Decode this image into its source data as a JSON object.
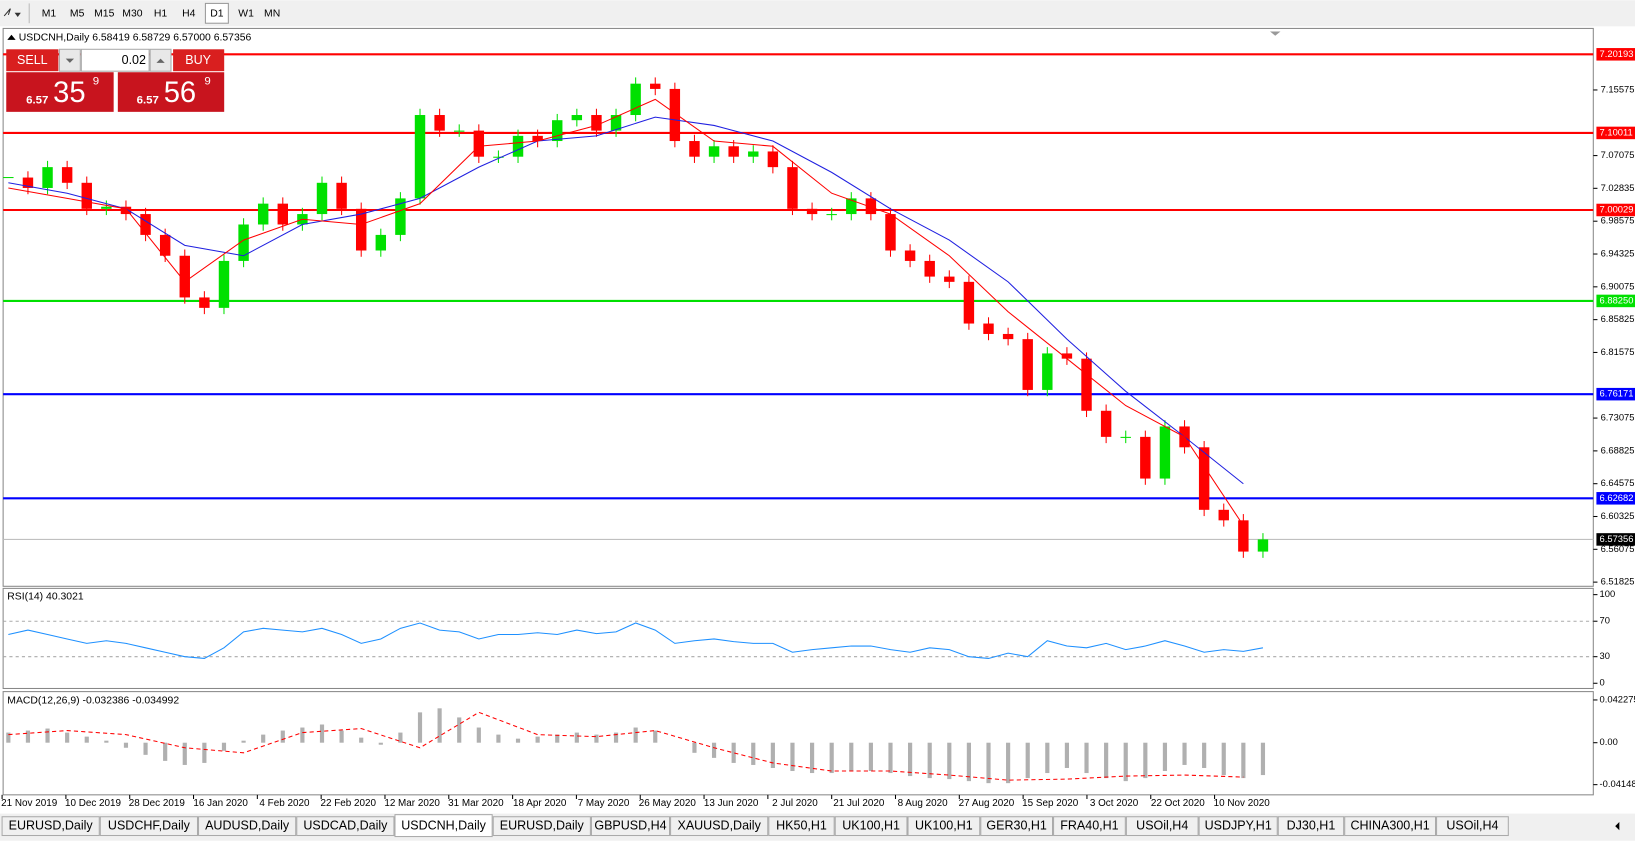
{
  "toolbar": {
    "timeframes": [
      "M1",
      "M5",
      "M15",
      "M30",
      "H1",
      "H4",
      "D1",
      "W1",
      "MN"
    ],
    "active": "D1"
  },
  "chart": {
    "header": "USDCNH,Daily  6.58419 6.58729 6.57000 6.57356",
    "trade": {
      "sell": "SELL",
      "buy": "BUY",
      "lot": "0.02",
      "sell_price": {
        "prefix": "6.57",
        "big": "35",
        "sup": "9"
      },
      "buy_price": {
        "prefix": "6.57",
        "big": "56",
        "sup": "9"
      }
    },
    "ylim": [
      6.5142,
      7.2341
    ],
    "yticks": [
      {
        "value": 7.15575,
        "label": "7.15575"
      },
      {
        "value": 7.07075,
        "label": "7.07075"
      },
      {
        "value": 7.02835,
        "label": "7.02835"
      },
      {
        "value": 6.98575,
        "label": "6.98575"
      },
      {
        "value": 6.94325,
        "label": "6.94325"
      },
      {
        "value": 6.90075,
        "label": "6.90075"
      },
      {
        "value": 6.85825,
        "label": "6.85825"
      },
      {
        "value": 6.81575,
        "label": "6.81575"
      },
      {
        "value": 6.73075,
        "label": "6.73075"
      },
      {
        "value": 6.68825,
        "label": "6.68825"
      },
      {
        "value": 6.64575,
        "label": "6.64575"
      },
      {
        "value": 6.60325,
        "label": "6.60325"
      },
      {
        "value": 6.56075,
        "label": "6.56075"
      },
      {
        "value": 6.51825,
        "label": "6.51825"
      }
    ],
    "levels": [
      {
        "value": 7.20193,
        "label": "7.20193",
        "color": "#ff0000"
      },
      {
        "value": 7.10011,
        "label": "7.10011",
        "color": "#ff0000"
      },
      {
        "value": 7.00029,
        "label": "7.00029",
        "color": "#ff0000"
      },
      {
        "value": 6.8825,
        "label": "6.88250",
        "color": "#00e000"
      },
      {
        "value": 6.76171,
        "label": "6.76171",
        "color": "#0000ff"
      },
      {
        "value": 6.62682,
        "label": "6.62682",
        "color": "#0000ff"
      }
    ],
    "current": {
      "value": 6.57356,
      "label": "6.57356"
    },
    "up_color": "#00e000",
    "down_color": "#ff0000",
    "closes": [
      7.0423,
      7.0288,
      7.0558,
      7.0355,
      7.0018,
      7.0045,
      6.995,
      6.968,
      6.941,
      6.887,
      6.8735,
      6.9343,
      6.9815,
      7.0085,
      6.9815,
      6.995,
      7.0355,
      7.0018,
      6.9478,
      6.968,
      7.0153,
      7.1233,
      7.1031,
      7.1031,
      7.0693,
      7.0693,
      7.0963,
      7.0896,
      7.1166,
      7.1233,
      7.1031,
      7.1233,
      7.1639,
      7.1571,
      7.0896,
      7.0693,
      7.0828,
      7.0693,
      7.0761,
      7.0558,
      7.0018,
      6.995,
      6.995,
      7.0153,
      6.995,
      6.9478,
      6.9343,
      6.914,
      6.9072,
      6.8532,
      6.8397,
      6.833,
      6.7672,
      6.8145,
      6.8077,
      6.7402,
      6.7064,
      6.7064,
      6.6524,
      6.7199,
      6.6929,
      6.6119,
      6.5983,
      6.5578,
      6.5736
    ],
    "ma_fast": {
      "color": "#ff0000",
      "values": [
        7.0288,
        7.0153,
        7.0018,
        6.9072,
        6.9613,
        6.9883,
        6.9815,
        7.0085,
        7.0828,
        7.0896,
        7.1098,
        7.1436,
        7.0896,
        7.0828,
        7.022,
        6.995,
        6.941,
        6.8685,
        6.8077,
        6.7469,
        6.7064,
        6.5916
      ]
    },
    "ma_slow": {
      "color": "#2020e0",
      "values": [
        7.0355,
        7.022,
        7.0018,
        6.9545,
        6.941,
        6.9815,
        6.995,
        7.0153,
        7.0558,
        7.0896,
        7.0963,
        7.1206,
        7.1098,
        7.0896,
        7.049,
        7.0018,
        6.9613,
        6.9072,
        6.833,
        6.7654,
        6.7064,
        6.6457
      ]
    },
    "dates": [
      "21 Nov 2019",
      "10 Dec 2019",
      "28 Dec 2019",
      "16 Jan 2020",
      "4 Feb 2020",
      "22 Feb 2020",
      "12 Mar 2020",
      "31 Mar 2020",
      "18 Apr 2020",
      "7 May 2020",
      "26 May 2020",
      "13 Jun 2020",
      "2 Jul 2020",
      "21 Jul 2020",
      "8 Aug 2020",
      "27 Aug 2020",
      "15 Sep 2020",
      "3 Oct 2020",
      "22 Oct 2020",
      "10 Nov 2020"
    ]
  },
  "rsi": {
    "label": "RSI(14) 40.3021",
    "color": "#1e90ff",
    "ylim": [
      0,
      100
    ],
    "yticks": [
      100,
      70,
      30,
      0
    ],
    "levels": [
      70,
      30
    ],
    "values": [
      55,
      60,
      55,
      50,
      45,
      48,
      45,
      40,
      35,
      30,
      28,
      40,
      58,
      62,
      60,
      58,
      62,
      55,
      45,
      50,
      62,
      68,
      60,
      58,
      50,
      55,
      55,
      57,
      55,
      60,
      56,
      58,
      68,
      60,
      45,
      48,
      50,
      47,
      45,
      45,
      35,
      38,
      40,
      42,
      42,
      38,
      35,
      40,
      38,
      30,
      28,
      34,
      30,
      48,
      42,
      40,
      45,
      38,
      42,
      48,
      42,
      35,
      38,
      36,
      40
    ]
  },
  "macd": {
    "label": "MACD(12,26,9) -0.032386 -0.034992",
    "ylim": [
      -0.0495,
      0.0495
    ],
    "yticks": [
      {
        "value": 0.042275,
        "label": "0.042275"
      },
      {
        "value": 0,
        "label": "0.00"
      },
      {
        "value": -0.04148,
        "label": "-0.04148"
      }
    ],
    "histogram_color": "#b0b0b0",
    "signal_color": "#ff0000",
    "histogram": [
      0.01,
      0.012,
      0.014,
      0.01,
      0.006,
      0.002,
      -0.005,
      -0.012,
      -0.018,
      -0.022,
      -0.02,
      -0.008,
      0.002,
      0.008,
      0.012,
      0.015,
      0.018,
      0.012,
      0.005,
      -0.002,
      0.01,
      0.03,
      0.034,
      0.025,
      0.015,
      0.008,
      0.004,
      0.006,
      0.008,
      0.01,
      0.008,
      0.01,
      0.015,
      0.012,
      0.0,
      -0.01,
      -0.015,
      -0.02,
      -0.022,
      -0.025,
      -0.028,
      -0.03,
      -0.03,
      -0.028,
      -0.028,
      -0.03,
      -0.033,
      -0.035,
      -0.036,
      -0.038,
      -0.04,
      -0.04,
      -0.035,
      -0.03,
      -0.025,
      -0.03,
      -0.035,
      -0.038,
      -0.035,
      -0.028,
      -0.022,
      -0.025,
      -0.032,
      -0.035,
      -0.032
    ],
    "signal": [
      0.008,
      0.012,
      0.008,
      -0.005,
      -0.01,
      0.01,
      0.014,
      -0.005,
      0.03,
      0.008,
      0.006,
      0.012,
      -0.005,
      -0.02,
      -0.028,
      -0.028,
      -0.032,
      -0.037,
      -0.036,
      -0.033,
      -0.032,
      -0.034
    ]
  },
  "tabs": {
    "items": [
      "EURUSD,Daily",
      "USDCHF,Daily",
      "AUDUSD,Daily",
      "USDCAD,Daily",
      "USDCNH,Daily",
      "EURUSD,Daily",
      "GBPUSD,H4",
      "XAUUSD,Daily",
      "HK50,H1",
      "UK100,H1",
      "UK100,H1",
      "GER30,H1",
      "FRA40,H1",
      "USOil,H4",
      "USDJPY,H1",
      "DJ30,H1",
      "CHINA300,H1",
      "USOil,H4"
    ],
    "active": "USDCNH,Daily"
  }
}
